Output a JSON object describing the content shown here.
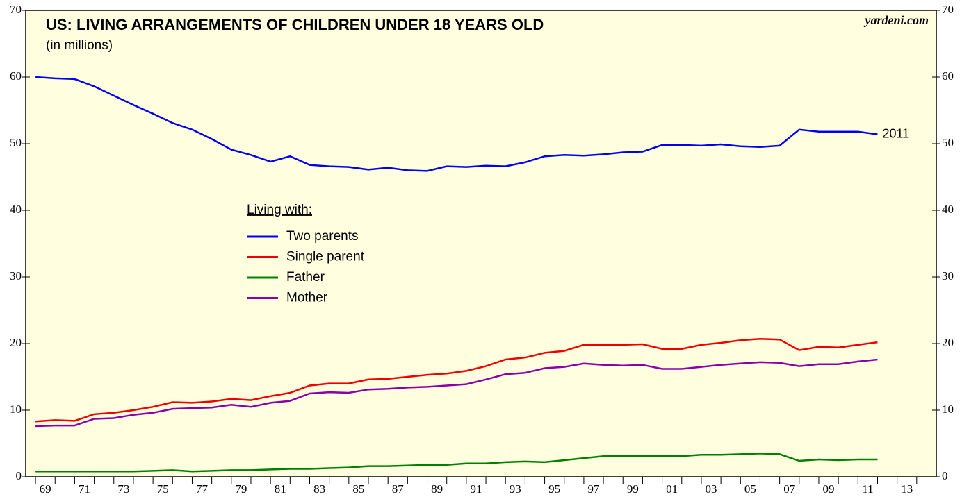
{
  "chart_data": {
    "type": "line",
    "title": "US: LIVING ARRANGEMENTS OF CHILDREN UNDER 18 YEARS OLD",
    "subtitle": "(in millions)",
    "source": "yardeni.com",
    "legend_title": "Living with:",
    "annotation": "2011",
    "x": [
      1968,
      1969,
      1970,
      1971,
      1972,
      1973,
      1974,
      1975,
      1976,
      1977,
      1978,
      1979,
      1980,
      1981,
      1982,
      1983,
      1984,
      1985,
      1986,
      1987,
      1988,
      1989,
      1990,
      1991,
      1992,
      1993,
      1994,
      1995,
      1996,
      1997,
      1998,
      1999,
      2000,
      2001,
      2002,
      2003,
      2004,
      2005,
      2006,
      2007,
      2008,
      2009,
      2010,
      2011
    ],
    "series": [
      {
        "name": "Two parents",
        "color": "#0000ee",
        "values": [
          60.0,
          59.8,
          59.7,
          58.6,
          57.2,
          55.8,
          54.5,
          53.1,
          52.1,
          50.7,
          49.1,
          48.3,
          47.3,
          48.1,
          46.8,
          46.6,
          46.5,
          46.1,
          46.4,
          46.0,
          45.9,
          46.6,
          46.5,
          46.7,
          46.6,
          47.2,
          48.1,
          48.3,
          48.2,
          48.4,
          48.7,
          48.8,
          49.8,
          49.8,
          49.7,
          49.9,
          49.6,
          49.5,
          49.7,
          52.1,
          51.8,
          51.8,
          51.8,
          51.4
        ]
      },
      {
        "name": "Single parent",
        "color": "#ee0000",
        "values": [
          8.3,
          8.5,
          8.4,
          9.4,
          9.6,
          10.0,
          10.5,
          11.2,
          11.1,
          11.3,
          11.7,
          11.5,
          12.1,
          12.6,
          13.7,
          14.0,
          14.0,
          14.6,
          14.7,
          15.0,
          15.3,
          15.5,
          15.9,
          16.6,
          17.6,
          17.9,
          18.6,
          18.9,
          19.8,
          19.8,
          19.8,
          19.9,
          19.2,
          19.2,
          19.8,
          20.1,
          20.5,
          20.7,
          20.6,
          19.0,
          19.5,
          19.4,
          19.8,
          20.2
        ]
      },
      {
        "name": "Father",
        "color": "#008000",
        "values": [
          0.8,
          0.8,
          0.8,
          0.8,
          0.8,
          0.8,
          0.9,
          1.0,
          0.8,
          0.9,
          1.0,
          1.0,
          1.1,
          1.2,
          1.2,
          1.3,
          1.4,
          1.6,
          1.6,
          1.7,
          1.8,
          1.8,
          2.0,
          2.0,
          2.2,
          2.3,
          2.2,
          2.5,
          2.8,
          3.1,
          3.1,
          3.1,
          3.1,
          3.1,
          3.3,
          3.3,
          3.4,
          3.5,
          3.4,
          2.4,
          2.6,
          2.5,
          2.6,
          2.6
        ]
      },
      {
        "name": "Mother",
        "color": "#8b00a8",
        "values": [
          7.6,
          7.7,
          7.7,
          8.7,
          8.8,
          9.3,
          9.6,
          10.2,
          10.3,
          10.4,
          10.8,
          10.5,
          11.1,
          11.4,
          12.5,
          12.7,
          12.6,
          13.1,
          13.2,
          13.4,
          13.5,
          13.7,
          13.9,
          14.6,
          15.4,
          15.6,
          16.3,
          16.5,
          17.0,
          16.8,
          16.7,
          16.8,
          16.2,
          16.2,
          16.5,
          16.8,
          17.0,
          17.2,
          17.1,
          16.6,
          16.9,
          16.9,
          17.3,
          17.6
        ]
      }
    ],
    "xlim": [
      1967.5,
      2014
    ],
    "xticks": [
      {
        "value": 1968.5,
        "label": "69"
      },
      {
        "value": 1970.5,
        "label": "71"
      },
      {
        "value": 1972.5,
        "label": "73"
      },
      {
        "value": 1974.5,
        "label": "75"
      },
      {
        "value": 1976.5,
        "label": "77"
      },
      {
        "value": 1978.5,
        "label": "79"
      },
      {
        "value": 1980.5,
        "label": "81"
      },
      {
        "value": 1982.5,
        "label": "83"
      },
      {
        "value": 1984.5,
        "label": "85"
      },
      {
        "value": 1986.5,
        "label": "87"
      },
      {
        "value": 1988.5,
        "label": "89"
      },
      {
        "value": 1990.5,
        "label": "91"
      },
      {
        "value": 1992.5,
        "label": "93"
      },
      {
        "value": 1994.5,
        "label": "95"
      },
      {
        "value": 1996.5,
        "label": "97"
      },
      {
        "value": 1998.5,
        "label": "99"
      },
      {
        "value": 2000.5,
        "label": "01"
      },
      {
        "value": 2002.5,
        "label": "03"
      },
      {
        "value": 2004.5,
        "label": "05"
      },
      {
        "value": 2006.5,
        "label": "07"
      },
      {
        "value": 2008.5,
        "label": "09"
      },
      {
        "value": 2010.5,
        "label": "11"
      },
      {
        "value": 2012.5,
        "label": "13"
      }
    ],
    "ylim": [
      0,
      70
    ],
    "yticks": [
      0,
      10,
      20,
      30,
      40,
      50,
      60,
      70
    ]
  }
}
